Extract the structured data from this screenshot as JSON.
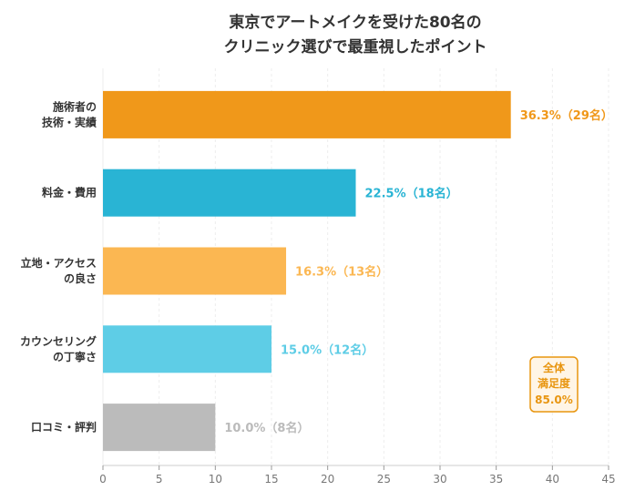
{
  "chart_data": {
    "type": "bar",
    "orientation": "horizontal",
    "title": [
      "東京でアートメイクを受けた80名の",
      "クリニック選びで最重視したポイント"
    ],
    "xlabel": "",
    "ylabel": "",
    "xlim": [
      0,
      45
    ],
    "xticks": [
      0,
      5,
      10,
      15,
      20,
      25,
      30,
      35,
      40,
      45
    ],
    "grid": true,
    "categories": [
      [
        "施術者の",
        "技術・実績"
      ],
      [
        "料金・費用"
      ],
      [
        "立地・アクセス",
        "の良さ"
      ],
      [
        "カウンセリング",
        "の丁寧さ"
      ],
      [
        "口コミ・評判"
      ]
    ],
    "values": [
      36.3,
      22.5,
      16.3,
      15.0,
      10.0
    ],
    "labels": [
      "36.3%（29名）",
      "22.5%（18名）",
      "16.3%（13名）",
      "15.0%（12名）",
      "10.0%（8名）"
    ],
    "colors": [
      "#F0981A",
      "#29B4D4",
      "#FBB752",
      "#5ECDE6",
      "#BBBBBB"
    ],
    "annotation": {
      "lines": [
        "全体",
        "満足度",
        "85.0%"
      ],
      "color": "#E8950F",
      "background": "#FFF5E6",
      "placement": "bottom-right"
    }
  }
}
